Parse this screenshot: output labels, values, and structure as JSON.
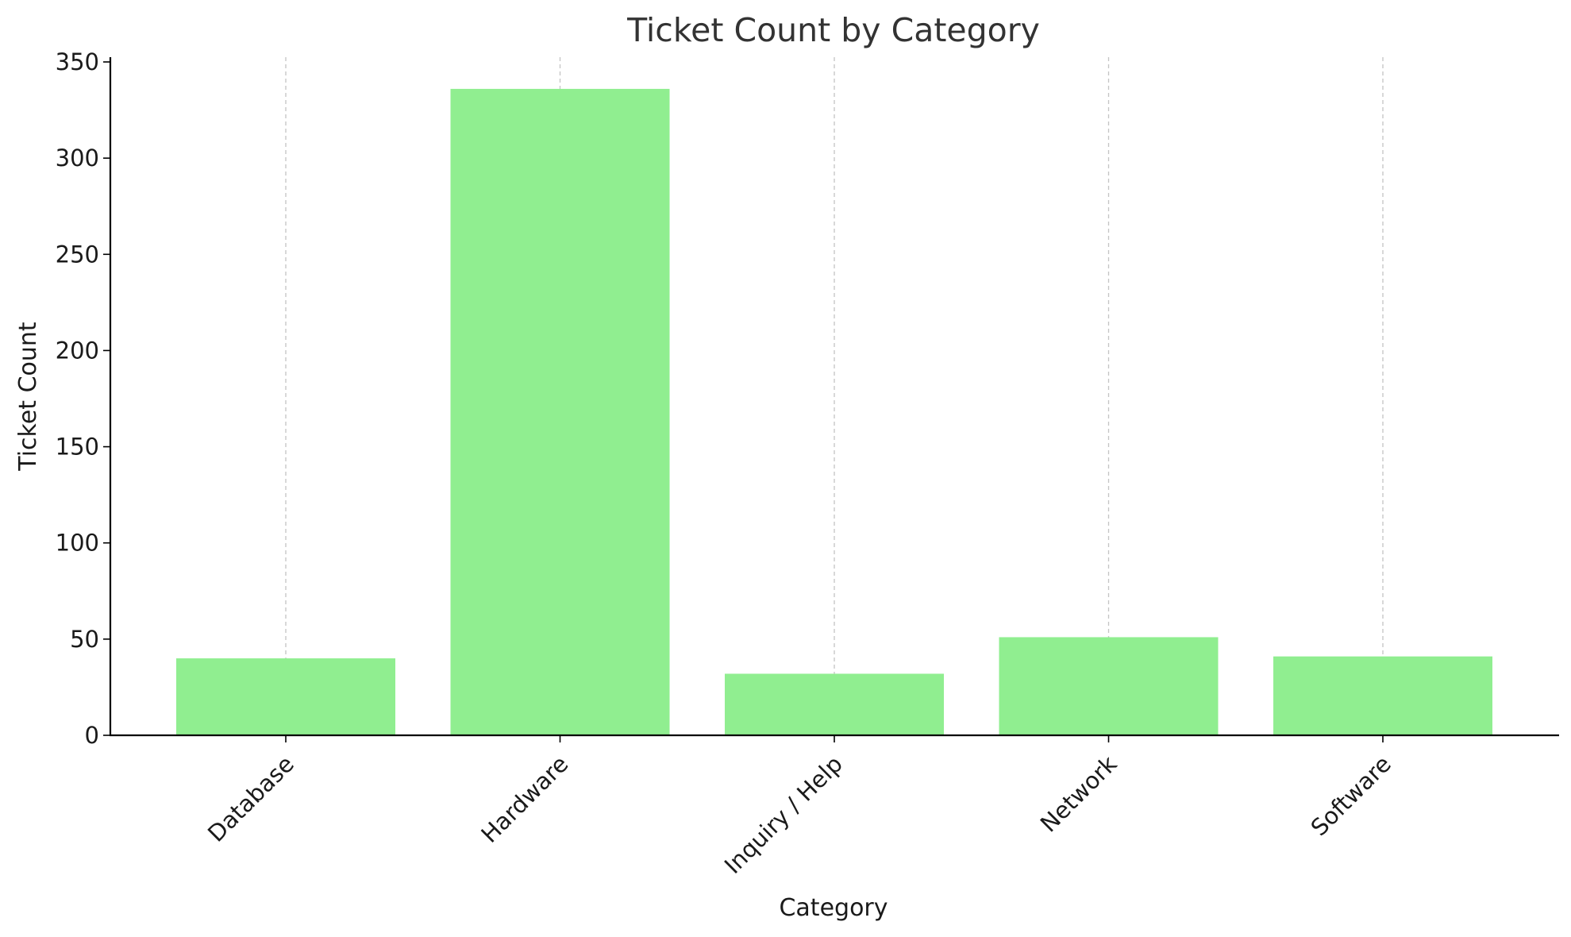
{
  "chart_data": {
    "type": "bar",
    "title": "Ticket Count by Category",
    "xlabel": "Category",
    "ylabel": "Ticket Count",
    "categories": [
      "Database",
      "Hardware",
      "Inquiry / Help",
      "Network",
      "Software"
    ],
    "values": [
      40,
      336,
      32,
      51,
      41
    ],
    "ylim": [
      0,
      350
    ],
    "yticks": [
      0,
      50,
      100,
      150,
      200,
      250,
      300,
      350
    ],
    "grid": "vertical dashed",
    "bar_color": "#90ee90",
    "tick_label_rotation": "45 degrees"
  }
}
